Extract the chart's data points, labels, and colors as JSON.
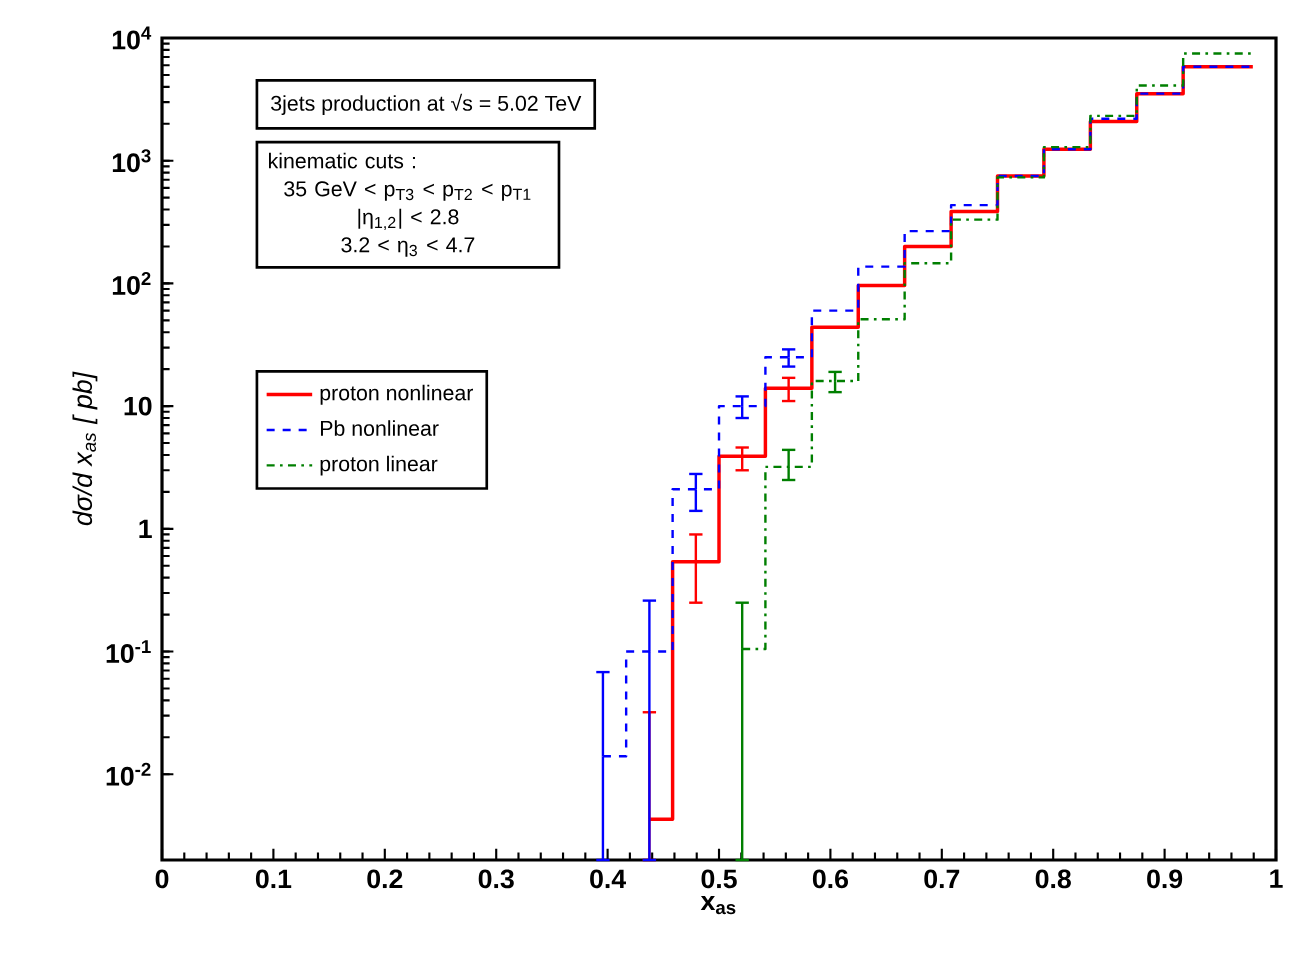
{
  "chart_data": {
    "type": "step",
    "xlabel": "x$_{as}$",
    "ylabel": "dσ/d x$_{as}$   [ pb]",
    "log": "y",
    "xlim": [
      0,
      1
    ],
    "ylim": [
      0.002,
      10000
    ],
    "xticks": [
      0,
      0.1,
      0.2,
      0.3,
      0.4,
      0.5,
      0.6,
      0.7,
      0.8,
      0.9,
      1
    ],
    "yticks": [
      {
        "value": 0.01,
        "label": "10$^{-2}$"
      },
      {
        "value": 0.1,
        "label": "10$^{-1}$"
      },
      1,
      10,
      {
        "value": 100,
        "label": "10$^{2}$"
      },
      {
        "value": 1000,
        "label": "10$^{3}$"
      },
      {
        "value": 10000,
        "label": "10$^{4}$"
      }
    ],
    "x": [
      0.3958,
      0.4375,
      0.4792,
      0.5208,
      0.5625,
      0.6042,
      0.6458,
      0.6875,
      0.7292,
      0.7708,
      0.8125,
      0.8542,
      0.8958,
      0.9375,
      0.9792
    ],
    "legend": "top left",
    "series": [
      {
        "name": "proton nonlinear",
        "color": "#ff0000",
        "line_style": "solid",
        "values": [
          null,
          0.0043,
          0.54,
          3.9,
          14,
          44,
          96,
          200,
          385,
          750,
          1240,
          2090,
          3520,
          5830,
          5830
        ],
        "errors": [
          null,
          [
            0.002,
            0.032
          ],
          [
            0.25,
            0.9
          ],
          [
            3.0,
            4.6
          ],
          [
            11,
            17
          ],
          null,
          null,
          null,
          null,
          null,
          null,
          null,
          null,
          null,
          null
        ]
      },
      {
        "name": "Pb nonlinear",
        "color": "#0000ff",
        "line_style": "dashed",
        "values": [
          0.014,
          0.1,
          2.1,
          10,
          25,
          60,
          137,
          267,
          435,
          750,
          1240,
          2200,
          3520,
          5830,
          5830
        ],
        "errors": [
          [
            0.002,
            0.068
          ],
          [
            0.002,
            0.26
          ],
          [
            1.4,
            2.8
          ],
          [
            8,
            12
          ],
          [
            21,
            29
          ],
          null,
          null,
          null,
          null,
          null,
          null,
          null,
          null,
          null,
          null
        ]
      },
      {
        "name": "proton linear",
        "color": "#007f00",
        "line_style": "dashdot",
        "values": [
          null,
          null,
          null,
          0.105,
          3.2,
          16,
          51,
          146,
          331,
          731,
          1290,
          2320,
          4100,
          7480,
          7480
        ],
        "errors": [
          null,
          null,
          null,
          [
            0.002,
            0.25
          ],
          [
            2.5,
            4.4
          ],
          [
            13,
            19
          ],
          null,
          null,
          null,
          null,
          null,
          null,
          null,
          null,
          null
        ]
      }
    ],
    "annotations": [
      "3jets production at √s = 5.02 TeV",
      "kinematic cuts :",
      "35 GeV < p$_{T3}$ < p$_{T2}$ < p$_{T1}$",
      "|η$_{1,2}$| < 2.8",
      "3.2 < η$_{3}$ < 4.7"
    ]
  }
}
